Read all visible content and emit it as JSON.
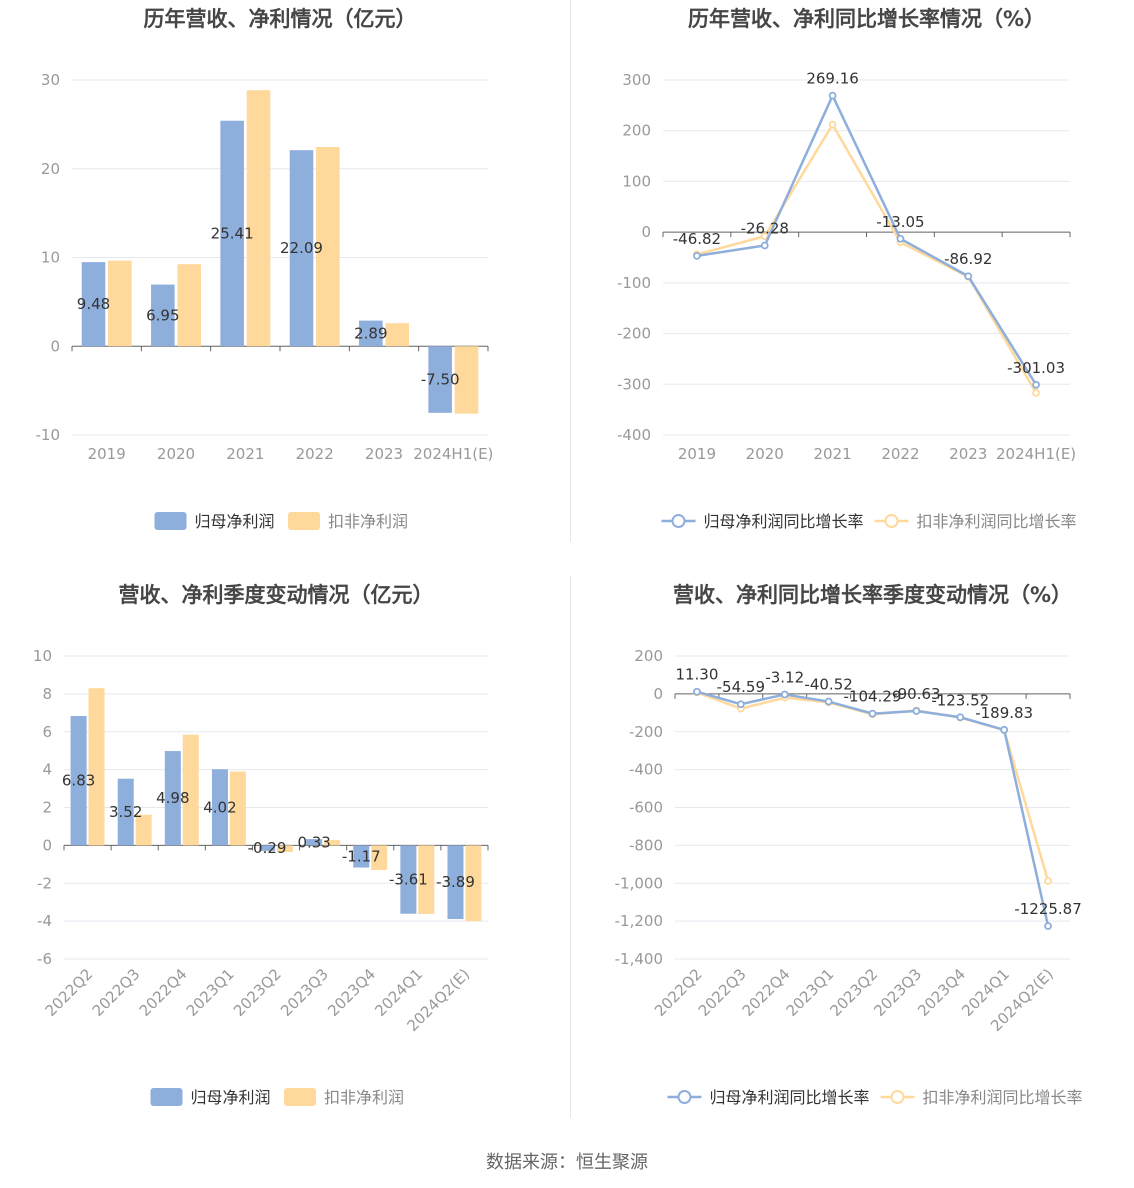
{
  "footer": {
    "source": "数据来源：恒生聚源"
  },
  "colors": {
    "series_a": "#8eaedc",
    "series_b": "#ffd99b",
    "axis": "#666666",
    "grid": "#e6e8f0",
    "label": "#333333",
    "title": "#464646",
    "tick": "#999999"
  },
  "chart_data": [
    {
      "type": "bar",
      "title": "历年营收、净利情况（亿元）",
      "categories": [
        "2019",
        "2020",
        "2021",
        "2022",
        "2023",
        "2024H1(E)"
      ],
      "ylim": [
        -10,
        30
      ],
      "yticks": [
        "30",
        "20",
        "10",
        "0",
        "-10"
      ],
      "legend_position": "bottom",
      "series": [
        {
          "name": "归母净利润",
          "values": [
            9.48,
            6.95,
            25.41,
            22.09,
            2.89,
            -7.5
          ],
          "labels": [
            "9.48",
            "6.95",
            "25.41",
            "22.09",
            "2.89",
            "-7.50"
          ]
        },
        {
          "name": "扣非净利润",
          "values": [
            9.65,
            9.25,
            28.85,
            22.45,
            2.6,
            -7.6
          ]
        }
      ]
    },
    {
      "type": "line",
      "title": "历年营收、净利同比增长率情况（%）",
      "categories": [
        "2019",
        "2020",
        "2021",
        "2022",
        "2023",
        "2024H1(E)"
      ],
      "ylim": [
        -400,
        300
      ],
      "yticks": [
        "300",
        "200",
        "100",
        "0",
        "-100",
        "-200",
        "-300",
        "-400"
      ],
      "legend_position": "bottom",
      "series": [
        {
          "name": "归母净利润同比增长率",
          "values": [
            -46.82,
            -26.28,
            269.16,
            -13.05,
            -86.92,
            -301.03
          ],
          "labels": [
            "-46.82",
            "-26.28",
            "269.16",
            "-13.05",
            "-86.92",
            "-301.03"
          ]
        },
        {
          "name": "扣非净利润同比增长率",
          "values": [
            -44,
            -8,
            212,
            -20,
            -88,
            -317
          ]
        }
      ]
    },
    {
      "type": "bar",
      "title": "营收、净利季度变动情况（亿元）",
      "categories": [
        "2022Q2",
        "2022Q3",
        "2022Q4",
        "2023Q1",
        "2023Q2",
        "2023Q3",
        "2023Q4",
        "2024Q1",
        "2024Q2(E)"
      ],
      "ylim": [
        -6,
        10
      ],
      "yticks": [
        "10",
        "8",
        "6",
        "4",
        "2",
        "0",
        "-2",
        "-4",
        "-6"
      ],
      "legend_position": "bottom",
      "series": [
        {
          "name": "归母净利润",
          "values": [
            6.83,
            3.52,
            4.98,
            4.02,
            -0.29,
            0.33,
            -1.17,
            -3.61,
            -3.89
          ],
          "labels": [
            "6.83",
            "3.52",
            "4.98",
            "4.02",
            "-0.29",
            "0.33",
            "-1.17",
            "-3.61",
            "-3.89"
          ]
        },
        {
          "name": "扣非净利润",
          "values": [
            8.3,
            1.62,
            5.85,
            3.9,
            -0.35,
            0.28,
            -1.3,
            -3.62,
            -4.0
          ]
        }
      ]
    },
    {
      "type": "line",
      "title": "营收、净利同比增长率季度变动情况（%）",
      "categories": [
        "2022Q2",
        "2022Q3",
        "2022Q4",
        "2023Q1",
        "2023Q2",
        "2023Q3",
        "2023Q4",
        "2024Q1",
        "2024Q2(E)"
      ],
      "ylim": [
        -1400,
        200
      ],
      "yticks": [
        "200",
        "0",
        "-200",
        "-400",
        "-600",
        "-800",
        "-1,000",
        "-1,200",
        "-1,400"
      ],
      "legend_position": "bottom",
      "series": [
        {
          "name": "归母净利润同比增长率",
          "values": [
            11.3,
            -54.59,
            -3.12,
            -40.52,
            -104.29,
            -90.63,
            -123.52,
            -189.83,
            -1225.87
          ],
          "labels": [
            "11.30",
            "-54.59",
            "-3.12",
            "-40.52",
            "-104.29",
            "-90.63",
            "-123.52",
            "-189.83",
            "-1225.87"
          ]
        },
        {
          "name": "扣非净利润同比增长率",
          "values": [
            8,
            -78,
            -20,
            -45,
            -108,
            -88,
            -125,
            -192,
            -988
          ]
        }
      ]
    }
  ]
}
